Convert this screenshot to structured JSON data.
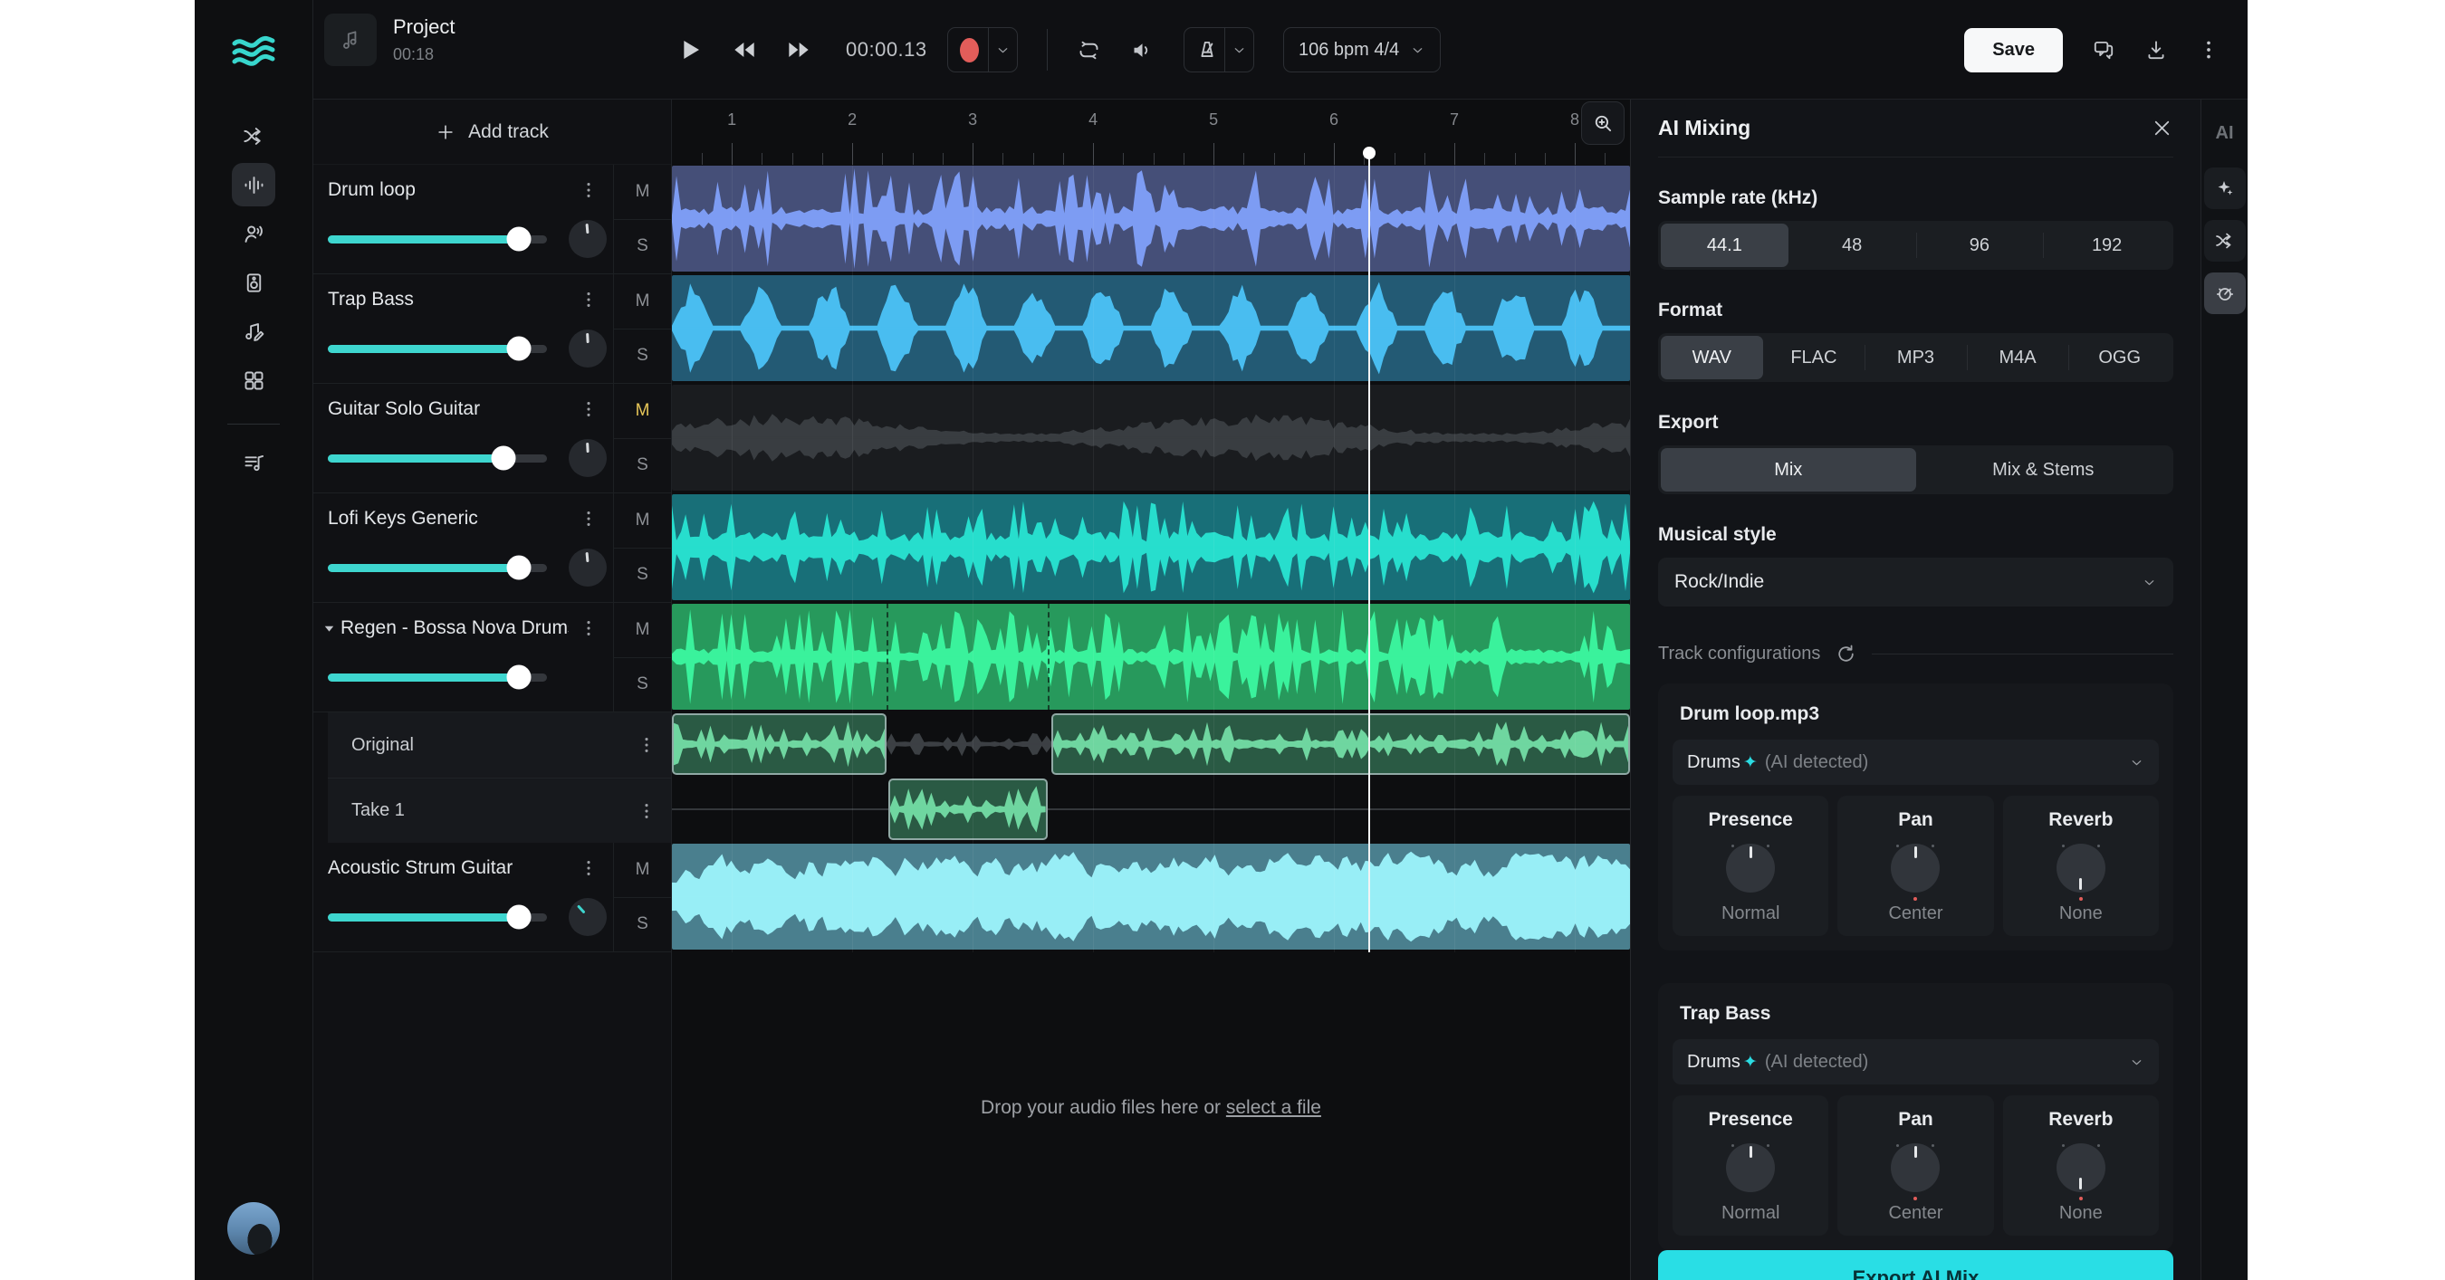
{
  "toolbar": {
    "project_title": "Project",
    "project_duration": "00:18",
    "time_display": "00:00.13",
    "bpm_label": "106 bpm 4/4",
    "save_label": "Save"
  },
  "sidebar": {
    "icons": [
      {
        "name": "split-arrows-icon",
        "active": false
      },
      {
        "name": "waveform-icon",
        "active": true
      },
      {
        "name": "voice-icon",
        "active": false
      },
      {
        "name": "speaker-box-icon",
        "active": false
      },
      {
        "name": "compose-icon",
        "active": false
      },
      {
        "name": "apps-grid-icon",
        "active": false
      },
      {
        "divider": true
      },
      {
        "name": "playlist-icon",
        "active": false
      }
    ]
  },
  "track_header": {
    "add_track_label": "Add track",
    "mute_label": "M",
    "solo_label": "S"
  },
  "tracks": [
    {
      "kind": "track",
      "name": "Drum loop",
      "volume": 87,
      "has_knob": true,
      "knob_angle": -5,
      "mute": false,
      "lane": {
        "h": 121,
        "bg": "#454f78",
        "wave": "#7d9cf3",
        "style": "drums",
        "seed": 7,
        "scale": 0.95,
        "segs": [
          [
            0,
            100
          ]
        ]
      }
    },
    {
      "kind": "track",
      "name": "Trap Bass",
      "volume": 87,
      "has_knob": true,
      "knob_angle": -3,
      "mute": false,
      "lane": {
        "h": 121,
        "bg": "#235a74",
        "wave": "#49bdf0",
        "style": "bass",
        "seed": 11,
        "scale": 0.92,
        "segs": [
          [
            0,
            100
          ]
        ]
      }
    },
    {
      "kind": "track",
      "name": "Guitar Solo Guitar",
      "volume": 80,
      "has_knob": true,
      "knob_angle": -3,
      "mute": true,
      "lane": {
        "h": 121,
        "bg": "#1a1c1f",
        "wave": "#393d41",
        "style": "noise",
        "seed": 5,
        "scale": 0.62,
        "segs": [
          [
            0,
            100
          ]
        ]
      }
    },
    {
      "kind": "track",
      "name": "Lofi Keys Generic",
      "volume": 87,
      "has_knob": true,
      "knob_angle": -5,
      "mute": false,
      "lane": {
        "h": 121,
        "bg": "#186f78",
        "wave": "#27decd",
        "style": "keys",
        "seed": 9,
        "scale": 0.88,
        "segs": [
          [
            0,
            100
          ]
        ]
      }
    },
    {
      "kind": "track",
      "name": "Regen - Bossa Nova Drums",
      "volume": 87,
      "has_knob": false,
      "expanded": true,
      "mute": false,
      "lane": {
        "h": 121,
        "bg": "#27995c",
        "wave": "#3af29c",
        "style": "drums2",
        "seed": 13,
        "scale": 0.9,
        "segs": [
          [
            0,
            100
          ]
        ],
        "dashes": [
          22.4,
          39.2
        ]
      }
    },
    {
      "kind": "lane",
      "name": "Original",
      "lane": {
        "h": 72,
        "bg": "#2a5a44",
        "wave": "#6fd6a0",
        "style": "small",
        "seed": 17,
        "scale": 0.85,
        "segs": [
          [
            0,
            22.4
          ],
          [
            39.6,
            100
          ]
        ],
        "ghost": [
          22.4,
          39.6
        ],
        "bordered": true
      }
    },
    {
      "kind": "lane",
      "name": "Take 1",
      "lane": {
        "h": 72,
        "bg": "#2a5a44",
        "wave": "#6fd6a0",
        "style": "small",
        "seed": 19,
        "scale": 0.85,
        "segs": [
          [
            22.6,
            39.2
          ]
        ],
        "baseline": true,
        "bordered": true
      }
    },
    {
      "kind": "track",
      "name": "Acoustic Strum Guitar",
      "volume": 87,
      "has_knob": true,
      "knob_angle": -42,
      "knob_color": "#3ed6cf",
      "mute": false,
      "lane": {
        "h": 121,
        "bg": "#4a7f8e",
        "wave": "#98eef6",
        "style": "acoustic",
        "seed": 23,
        "scale": 0.97,
        "segs": [
          [
            0,
            100
          ]
        ]
      }
    }
  ],
  "timeline": {
    "bars": [
      "1",
      "2",
      "3",
      "4",
      "5",
      "6",
      "7",
      "8"
    ],
    "first_pct": 6.25,
    "step_pct": 12.57,
    "playhead_pct": 72.8
  },
  "dropzone": {
    "text": "Drop your audio files here or",
    "link": "select a file"
  },
  "panel": {
    "title": "AI Mixing",
    "sample_rate": {
      "label": "Sample rate (kHz)",
      "options": [
        "44.1",
        "48",
        "96",
        "192"
      ],
      "selected": "44.1"
    },
    "format": {
      "label": "Format",
      "options": [
        "WAV",
        "FLAC",
        "MP3",
        "M4A",
        "OGG"
      ],
      "selected": "WAV"
    },
    "export": {
      "label": "Export",
      "options": [
        "Mix",
        "Mix & Stems"
      ],
      "selected": "Mix"
    },
    "musical_style": {
      "label": "Musical style",
      "value": "Rock/Indie"
    },
    "track_config_label": "Track configurations",
    "cards": [
      {
        "title": "Drum loop.mp3",
        "instrument": "Drums",
        "sparkle": "✦",
        "detected": "(AI detected)",
        "knobs": [
          {
            "label": "Presence",
            "value": "Normal",
            "angle": 0,
            "dot": false
          },
          {
            "label": "Pan",
            "value": "Center",
            "angle": 0,
            "dot": true
          },
          {
            "label": "Reverb",
            "value": "None",
            "angle": 180,
            "dot": true
          }
        ]
      },
      {
        "title": "Trap Bass",
        "instrument": "Drums",
        "sparkle": "✦",
        "detected": "(AI detected)",
        "knobs": [
          {
            "label": "Presence",
            "value": "Normal",
            "angle": 0,
            "dot": false
          },
          {
            "label": "Pan",
            "value": "Center",
            "angle": 0,
            "dot": true
          },
          {
            "label": "Reverb",
            "value": "None",
            "angle": 180,
            "dot": true
          }
        ]
      }
    ],
    "export_button": "Export AI Mix",
    "accent": "#29dee5"
  },
  "right_strip": {
    "label": "AI",
    "icons": [
      {
        "name": "sparkle-icon",
        "active": false
      },
      {
        "name": "split-arrows-icon",
        "active": false
      },
      {
        "name": "knob-dial-icon",
        "active": true
      }
    ]
  }
}
